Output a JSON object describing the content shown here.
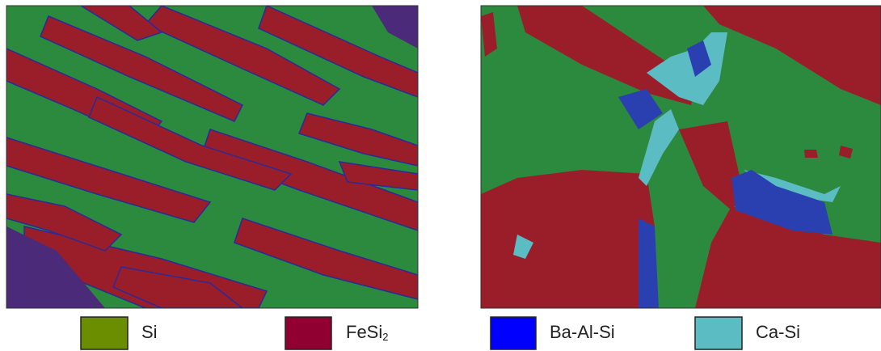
{
  "legend": [
    {
      "label": "Si"
    },
    {
      "label": "FeSi",
      "subscript": "2"
    },
    {
      "label": "Ba-Al-Si"
    },
    {
      "label": "Ca-Si"
    }
  ]
}
